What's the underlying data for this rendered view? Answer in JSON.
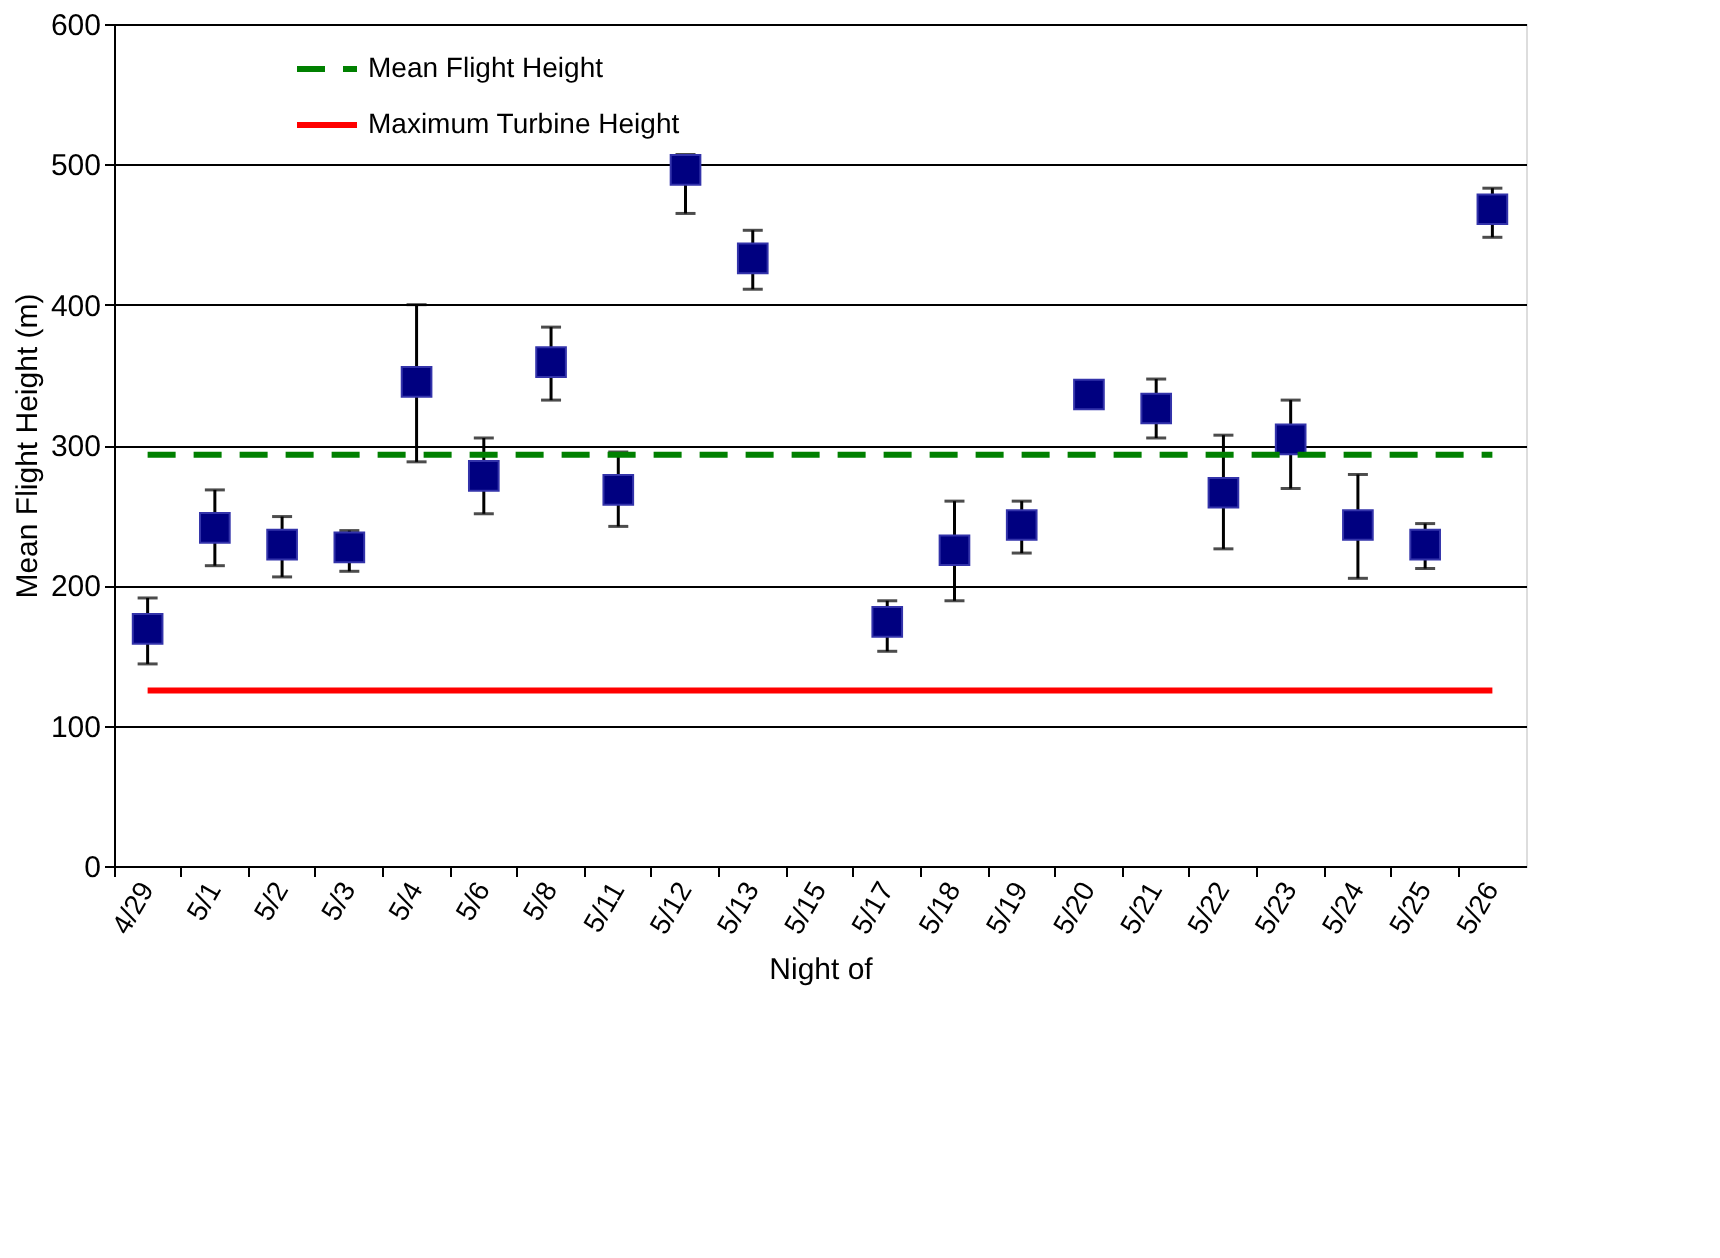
{
  "chart_data": {
    "type": "scatter",
    "xlabel": "Night of",
    "ylabel": "Mean Flight Height (m)",
    "categories": [
      "4/29",
      "5/1",
      "5/2",
      "5/3",
      "5/4",
      "5/6",
      "5/8",
      "5/11",
      "5/12",
      "5/13",
      "5/15",
      "5/17",
      "5/18",
      "5/19",
      "5/20",
      "5/21",
      "5/22",
      "5/23",
      "5/24",
      "5/25",
      "5/26"
    ],
    "series": [
      {
        "color": "#000080",
        "values": [
          169,
          241,
          229,
          227,
          345,
          278,
          359,
          268,
          496,
          433,
          null,
          174,
          225,
          243,
          336,
          326,
          266,
          304,
          243,
          229,
          468
        ],
        "errors": [
          [
            144,
            191
          ],
          [
            214,
            268
          ],
          [
            206,
            249
          ],
          [
            210,
            239
          ],
          [
            288,
            400
          ],
          [
            251,
            305
          ],
          [
            332,
            384
          ],
          [
            242,
            295
          ],
          [
            465,
            507
          ],
          [
            411,
            453
          ],
          null,
          [
            153,
            189
          ],
          [
            189,
            260
          ],
          [
            223,
            260
          ],
          null,
          [
            305,
            347
          ],
          [
            226,
            307
          ],
          [
            269,
            332
          ],
          [
            205,
            279
          ],
          [
            212,
            244
          ],
          [
            448,
            483
          ]
        ]
      }
    ],
    "marker": "square",
    "ylim": [
      0,
      600
    ],
    "yticks": [
      0,
      100,
      200,
      300,
      400,
      500,
      600
    ],
    "grid": "y",
    "ref_lines": [
      {
        "axis": "y",
        "value": 293,
        "label": "Mean Flight Height",
        "color": "#008000",
        "line_style": "dashed"
      },
      {
        "axis": "y",
        "value": 125,
        "label": "Maximum Turbine Height",
        "color": "#ff0000",
        "line_style": "solid"
      }
    ],
    "legend": "top left"
  }
}
